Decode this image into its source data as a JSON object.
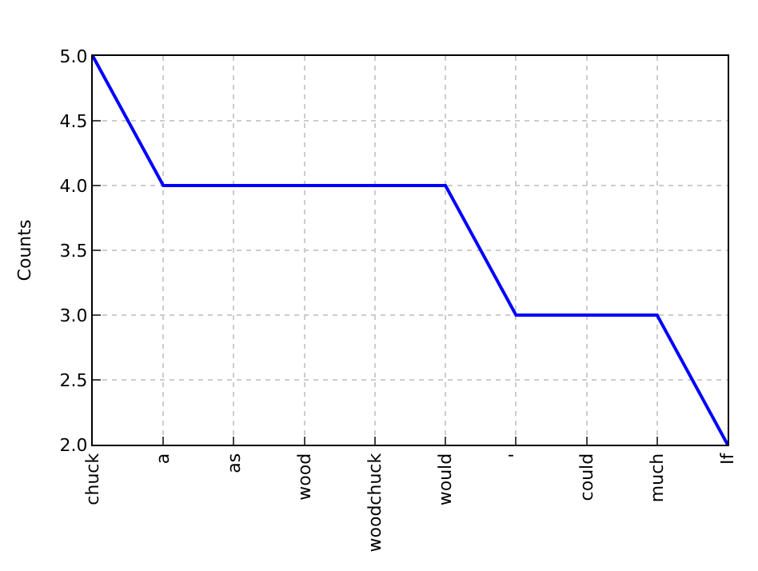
{
  "chart_data": {
    "type": "line",
    "ylabel": "Counts",
    "categories": [
      "chuck",
      "a",
      "as",
      "wood",
      "woodchuck",
      "would",
      "'",
      "could",
      "much",
      "If"
    ],
    "series": [
      {
        "color": "#0000ff",
        "values": [
          5,
          4,
          4,
          4,
          4,
          4,
          3,
          3,
          3,
          2
        ]
      }
    ],
    "ylim": [
      2.0,
      5.0
    ],
    "yticks": [
      {
        "value": 2,
        "label": "2.0"
      },
      {
        "value": 2.5,
        "label": "2.5"
      },
      {
        "value": 3,
        "label": "3.0"
      },
      {
        "value": 3.5,
        "label": "3.5"
      },
      {
        "value": 4,
        "label": "4.0"
      },
      {
        "value": 4.5,
        "label": "4.5"
      },
      {
        "value": 5,
        "label": "5.0"
      }
    ],
    "grid": true,
    "line_style": "solid",
    "marker": "none"
  }
}
